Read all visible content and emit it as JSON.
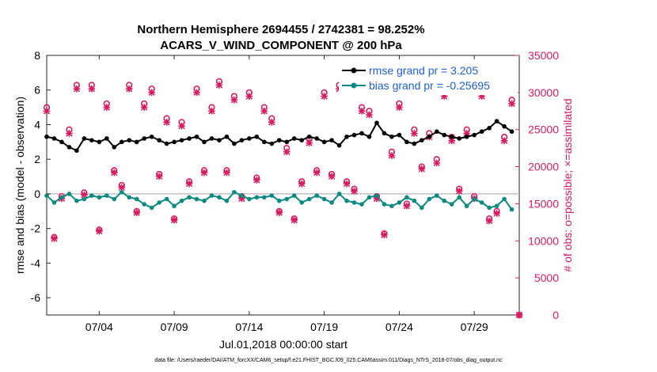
{
  "chart_data": {
    "type": "line",
    "title_line1": "Northern Hemisphere 2694455 / 2742381 = 98.252%",
    "title_line2": "ACARS_V_WIND_COMPONENT @ 200 hPa",
    "xlabel": "Jul.01,2018 00:00:00 start",
    "ylabel_left": "rmse and bias (model - observation)",
    "ylabel_right": "# of obs: o=possible; ×=assimilated",
    "footnote": "data file: /Users/raeder/DAI/ATM_forcXX/CAM6_setup/f.e21.FHIST_BGC.f09_025.CAM6assim.011/Diags_NTrS_2018-07/obs_diag_output.nc",
    "x_range_days": [
      0.5,
      32.0
    ],
    "x_ticks": [
      {
        "day": 4,
        "label": "07/04"
      },
      {
        "day": 9,
        "label": "07/09"
      },
      {
        "day": 14,
        "label": "07/14"
      },
      {
        "day": 19,
        "label": "07/19"
      },
      {
        "day": 24,
        "label": "07/24"
      },
      {
        "day": 29,
        "label": "07/29"
      }
    ],
    "y_left_range": [
      -7,
      8
    ],
    "y_left_ticks": [
      "8",
      "6",
      "4",
      "2",
      "0",
      "-2",
      "-4",
      "-6"
    ],
    "y_right_range": [
      0,
      35000
    ],
    "y_right_ticks": [
      "35000",
      "30000",
      "25000",
      "20000",
      "15000",
      "10000",
      "5000",
      "0"
    ],
    "zero_line": 0,
    "series": [
      {
        "name": "rmse grand pr = 3.205",
        "color": "#000000",
        "axis": "left",
        "x": [
          0.5,
          1.0,
          1.5,
          2.0,
          2.5,
          3.0,
          3.5,
          4.0,
          4.5,
          5.0,
          5.5,
          6.0,
          6.5,
          7.0,
          7.5,
          8.0,
          8.5,
          9.0,
          9.5,
          10.0,
          10.5,
          11.0,
          11.5,
          12.0,
          12.5,
          13.0,
          13.5,
          14.0,
          14.5,
          15.0,
          15.5,
          16.0,
          16.5,
          17.0,
          17.5,
          18.0,
          18.5,
          19.0,
          19.5,
          20.0,
          20.5,
          21.0,
          21.5,
          22.0,
          22.5,
          23.0,
          23.5,
          24.0,
          24.5,
          25.0,
          25.5,
          26.0,
          26.5,
          27.0,
          27.5,
          28.0,
          28.5,
          29.0,
          29.5,
          30.0,
          30.5,
          31.0,
          31.5
        ],
        "values": [
          3.3,
          3.2,
          3.0,
          2.7,
          2.5,
          3.2,
          3.1,
          3.0,
          3.2,
          2.7,
          3.0,
          3.1,
          3.0,
          3.2,
          3.3,
          3.1,
          2.9,
          3.0,
          3.1,
          3.2,
          3.3,
          3.0,
          3.2,
          3.1,
          3.3,
          2.9,
          3.1,
          3.2,
          3.3,
          3.0,
          2.9,
          3.1,
          3.0,
          3.2,
          3.1,
          3.3,
          3.2,
          3.0,
          3.1,
          2.8,
          3.3,
          3.4,
          3.5,
          3.3,
          4.1,
          3.5,
          3.3,
          3.4,
          3.0,
          2.9,
          3.1,
          3.3,
          3.6,
          3.4,
          3.3,
          3.2,
          3.3,
          3.4,
          3.6,
          3.8,
          4.2,
          3.9,
          3.6
        ]
      },
      {
        "name": "bias grand pr = -0.25695",
        "color": "#0a8a80",
        "axis": "left",
        "x": [
          0.5,
          1.0,
          1.5,
          2.0,
          2.5,
          3.0,
          3.5,
          4.0,
          4.5,
          5.0,
          5.5,
          6.0,
          6.5,
          7.0,
          7.5,
          8.0,
          8.5,
          9.0,
          9.5,
          10.0,
          10.5,
          11.0,
          11.5,
          12.0,
          12.5,
          13.0,
          13.5,
          14.0,
          14.5,
          15.0,
          15.5,
          16.0,
          16.5,
          17.0,
          17.5,
          18.0,
          18.5,
          19.0,
          19.5,
          20.0,
          20.5,
          21.0,
          21.5,
          22.0,
          22.5,
          23.0,
          23.5,
          24.0,
          24.5,
          25.0,
          25.5,
          26.0,
          26.5,
          27.0,
          27.5,
          28.0,
          28.5,
          29.0,
          29.5,
          30.0,
          30.5,
          31.0,
          31.5
        ],
        "values": [
          -0.1,
          -0.5,
          -0.2,
          0.0,
          -0.4,
          -0.3,
          -0.1,
          -0.2,
          -0.1,
          -0.3,
          0.1,
          -0.2,
          -0.3,
          -0.6,
          -0.8,
          -0.5,
          -0.3,
          -0.7,
          -0.4,
          -0.2,
          -0.3,
          -0.4,
          -0.1,
          -0.2,
          -0.4,
          0.1,
          -0.1,
          -0.3,
          -0.2,
          -0.2,
          -0.1,
          -0.4,
          -0.3,
          -0.1,
          -0.5,
          -0.3,
          -0.1,
          -0.3,
          -0.5,
          0.0,
          -0.4,
          -0.5,
          -0.6,
          -0.2,
          -0.1,
          -0.6,
          -0.7,
          -0.5,
          -0.2,
          -0.4,
          -0.8,
          -0.3,
          -0.1,
          -0.4,
          -0.6,
          -0.2,
          -0.7,
          -0.3,
          -0.5,
          -0.8,
          -0.7,
          -0.3,
          -0.9
        ]
      },
      {
        "name": "possible obs",
        "color": "#d81b60",
        "axis": "right",
        "marker": "o",
        "x": [
          0.5,
          1.0,
          1.5,
          2.0,
          2.5,
          3.0,
          3.5,
          4.0,
          4.5,
          5.0,
          5.5,
          6.0,
          6.5,
          7.0,
          7.5,
          8.0,
          8.5,
          9.0,
          9.5,
          10.0,
          10.5,
          11.0,
          11.5,
          12.0,
          12.5,
          13.0,
          13.5,
          14.0,
          14.5,
          15.0,
          15.5,
          16.0,
          16.5,
          17.0,
          17.5,
          18.0,
          18.5,
          19.0,
          19.5,
          20.0,
          20.5,
          21.0,
          21.5,
          22.0,
          22.5,
          23.0,
          23.5,
          24.0,
          24.5,
          25.0,
          25.5,
          26.0,
          26.5,
          27.0,
          27.5,
          28.0,
          28.5,
          29.0,
          29.5,
          30.0,
          30.5,
          31.0,
          31.5,
          32.0
        ],
        "values": [
          28000,
          10500,
          16000,
          25000,
          31000,
          16500,
          31000,
          11500,
          28500,
          19500,
          17500,
          31000,
          14000,
          28500,
          30500,
          19000,
          26500,
          13000,
          26000,
          18000,
          30500,
          19500,
          28000,
          31500,
          19500,
          29500,
          16000,
          30000,
          18500,
          28000,
          26500,
          14000,
          22500,
          13000,
          18000,
          23800,
          19500,
          30000,
          19000,
          31000,
          18000,
          17000,
          28000,
          27500,
          16000,
          11000,
          22000,
          28500,
          15000,
          25000,
          20000,
          24500,
          21000,
          30000,
          24000,
          17000,
          25000,
          16000,
          30000,
          13000,
          14000,
          24000,
          29000,
          0
        ]
      },
      {
        "name": "assimilated obs",
        "color": "#d81b60",
        "axis": "right",
        "marker": "x",
        "x": [
          0.5,
          1.0,
          1.5,
          2.0,
          2.5,
          3.0,
          3.5,
          4.0,
          4.5,
          5.0,
          5.5,
          6.0,
          6.5,
          7.0,
          7.5,
          8.0,
          8.5,
          9.0,
          9.5,
          10.0,
          10.5,
          11.0,
          11.5,
          12.0,
          12.5,
          13.0,
          13.5,
          14.0,
          14.5,
          15.0,
          15.5,
          16.0,
          16.5,
          17.0,
          17.5,
          18.0,
          18.5,
          19.0,
          19.5,
          20.0,
          20.5,
          21.0,
          21.5,
          22.0,
          22.5,
          23.0,
          23.5,
          24.0,
          24.5,
          25.0,
          25.5,
          26.0,
          26.5,
          27.0,
          27.5,
          28.0,
          28.5,
          29.0,
          29.5,
          30.0,
          30.5,
          31.0,
          31.5,
          32.0
        ],
        "values": [
          27500,
          10300,
          15700,
          24500,
          30500,
          16200,
          30500,
          11300,
          28000,
          19200,
          17200,
          30500,
          13800,
          28000,
          30000,
          18700,
          26000,
          12800,
          25500,
          17700,
          30000,
          19200,
          27500,
          31000,
          19200,
          29000,
          15700,
          29500,
          18200,
          27500,
          26000,
          13800,
          22000,
          12800,
          17700,
          23200,
          19200,
          29500,
          18700,
          30500,
          17700,
          16700,
          27500,
          27000,
          15700,
          10800,
          21500,
          28000,
          14700,
          24500,
          19700,
          24000,
          20500,
          29500,
          23500,
          16700,
          24500,
          15700,
          29500,
          12700,
          13700,
          23500,
          28500,
          0
        ]
      }
    ]
  }
}
